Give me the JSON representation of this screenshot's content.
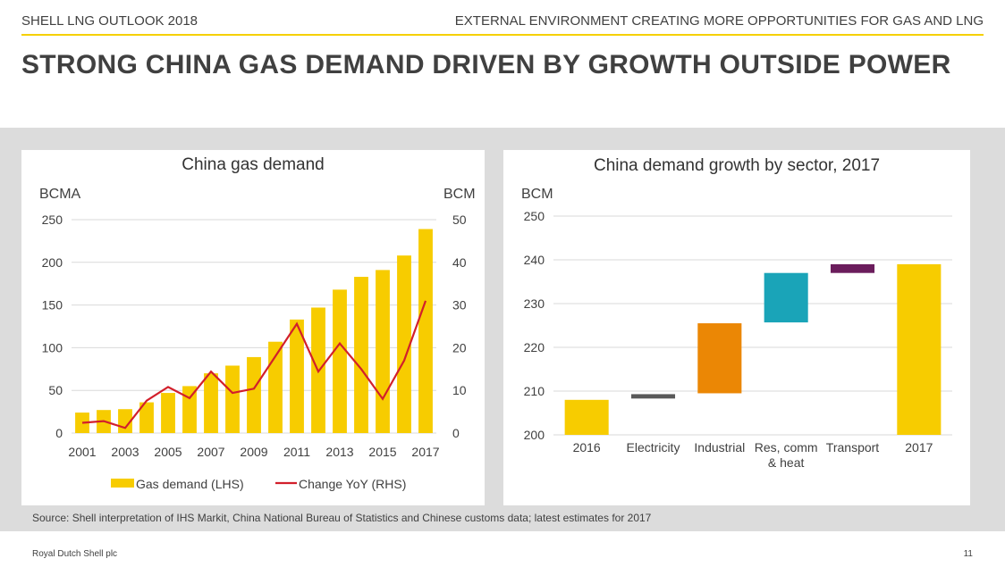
{
  "header": {
    "left": "SHELL LNG OUTLOOK 2018",
    "right": "EXTERNAL ENVIRONMENT CREATING MORE OPPORTUNITIES FOR GAS AND LNG"
  },
  "title": "STRONG CHINA GAS DEMAND DRIVEN BY GROWTH OUTSIDE POWER",
  "source": "Source: Shell interpretation of IHS Markit, China National Bureau of Statistics and Chinese customs data; latest estimates for 2017",
  "footer": {
    "left": "Royal Dutch Shell plc",
    "right": "11"
  },
  "colors": {
    "accent": "#f5d000",
    "bar": "#f7cc00",
    "line": "#d21f2b",
    "electricity": "#595959",
    "industrial": "#eb8705",
    "res": "#1aa4b8",
    "transport": "#6b1d5c"
  },
  "chart_data": [
    {
      "type": "bar",
      "title": "China gas demand",
      "ylabel": "BCMA",
      "y2label": "BCM",
      "ylim": [
        0,
        250
      ],
      "y2lim": [
        0,
        50
      ],
      "yticks": [
        "0",
        "50",
        "100",
        "150",
        "200",
        "250"
      ],
      "y2ticks": [
        "0",
        "10",
        "20",
        "30",
        "40",
        "50"
      ],
      "categories": [
        2001,
        2002,
        2003,
        2004,
        2005,
        2006,
        2007,
        2008,
        2009,
        2010,
        2011,
        2012,
        2013,
        2014,
        2015,
        2016,
        2017
      ],
      "xtick_labels": [
        "2001",
        "2003",
        "2005",
        "2007",
        "2009",
        "2011",
        "2013",
        "2015",
        "2017"
      ],
      "series": [
        {
          "name": "Gas demand (LHS)",
          "type": "bar",
          "axis": "left",
          "values": [
            24,
            27,
            28,
            36,
            47,
            55,
            70,
            79,
            89,
            107,
            133,
            147,
            168,
            183,
            191,
            208,
            239
          ]
        },
        {
          "name": "Change YoY (RHS)",
          "type": "line",
          "axis": "right",
          "values": [
            2.4,
            2.8,
            1.2,
            7.6,
            10.8,
            8.2,
            14.4,
            9.4,
            10.4,
            18.0,
            25.6,
            14.4,
            21.0,
            15.0,
            8.0,
            17.0,
            31.0
          ]
        }
      ],
      "legend": [
        "Gas demand (LHS)",
        "Change YoY (RHS)"
      ],
      "legend_position": "bottom",
      "grid": true
    },
    {
      "type": "bar",
      "subtype": "waterfall",
      "title": "China demand growth by sector, 2017",
      "ylabel": "BCM",
      "ylim": [
        200,
        250
      ],
      "yticks": [
        "200",
        "210",
        "220",
        "230",
        "240",
        "250"
      ],
      "categories": [
        "2016",
        "Electricity",
        "Industrial",
        "Res, comm\n& heat",
        "Transport",
        "2017"
      ],
      "bars": [
        {
          "label": "2016",
          "start": 200,
          "end": 208,
          "color": "#f7cc00"
        },
        {
          "label": "Electricity",
          "start": 208.3,
          "end": 209.3,
          "color": "#595959"
        },
        {
          "label": "Industrial",
          "start": 209.5,
          "end": 225.5,
          "color": "#eb8705"
        },
        {
          "label": "Res, comm\n& heat",
          "start": 225.7,
          "end": 237,
          "color": "#1aa4b8"
        },
        {
          "label": "Transport",
          "start": 237,
          "end": 239,
          "color": "#6b1d5c"
        },
        {
          "label": "2017",
          "start": 200,
          "end": 239,
          "color": "#f7cc00"
        }
      ],
      "grid": true
    }
  ]
}
